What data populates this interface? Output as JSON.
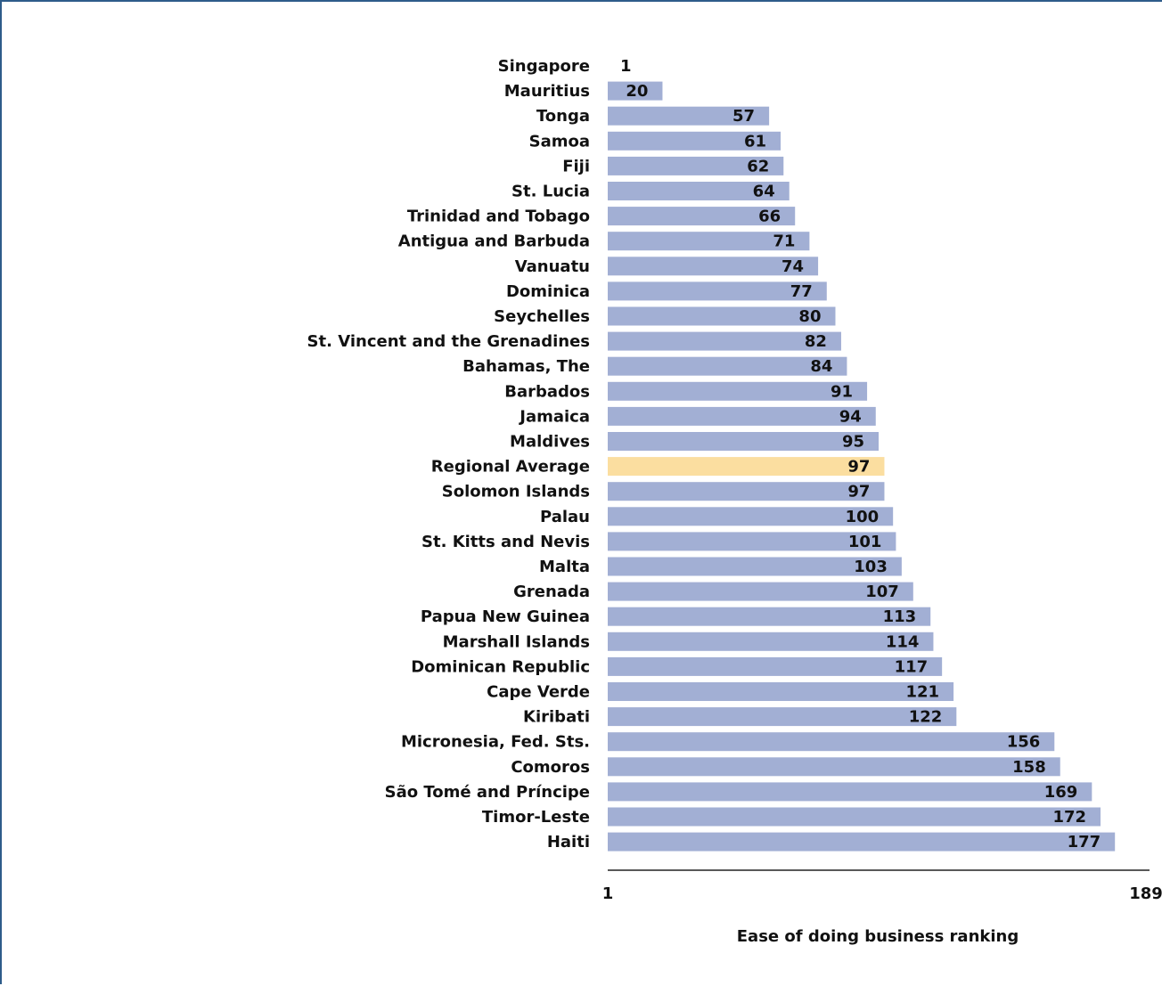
{
  "colors": {
    "bar": "#a2afd4",
    "highlight_bar": "#fbdea0",
    "axis": "#222222",
    "frame": "#2e5c8a"
  },
  "chart_data": {
    "type": "bar",
    "orientation": "horizontal",
    "title": "",
    "xlabel": "Ease of doing business ranking",
    "ylabel": "",
    "xlim": [
      1,
      189
    ],
    "xticks": [
      "1",
      "189"
    ],
    "grid": false,
    "legend": "none",
    "highlight": "Regional Average",
    "categories": [
      "Singapore",
      "Mauritius",
      "Tonga",
      "Samoa",
      "Fiji",
      "St. Lucia",
      "Trinidad and Tobago",
      "Antigua and Barbuda",
      "Vanuatu",
      "Dominica",
      "Seychelles",
      "St. Vincent and the Grenadines",
      "Bahamas, The",
      "Barbados",
      "Jamaica",
      "Maldives",
      "Regional Average",
      "Solomon Islands",
      "Palau",
      "St. Kitts and Nevis",
      "Malta",
      "Grenada",
      "Papua New Guinea",
      "Marshall Islands",
      "Dominican Republic",
      "Cape Verde",
      "Kiribati",
      "Micronesia, Fed. Sts.",
      "Comoros",
      "São Tomé and Príncipe",
      "Timor-Leste",
      "Haiti"
    ],
    "values": [
      1,
      20,
      57,
      61,
      62,
      64,
      66,
      71,
      74,
      77,
      80,
      82,
      84,
      91,
      94,
      95,
      97,
      97,
      100,
      101,
      103,
      107,
      113,
      114,
      117,
      121,
      122,
      156,
      158,
      169,
      172,
      177
    ]
  }
}
